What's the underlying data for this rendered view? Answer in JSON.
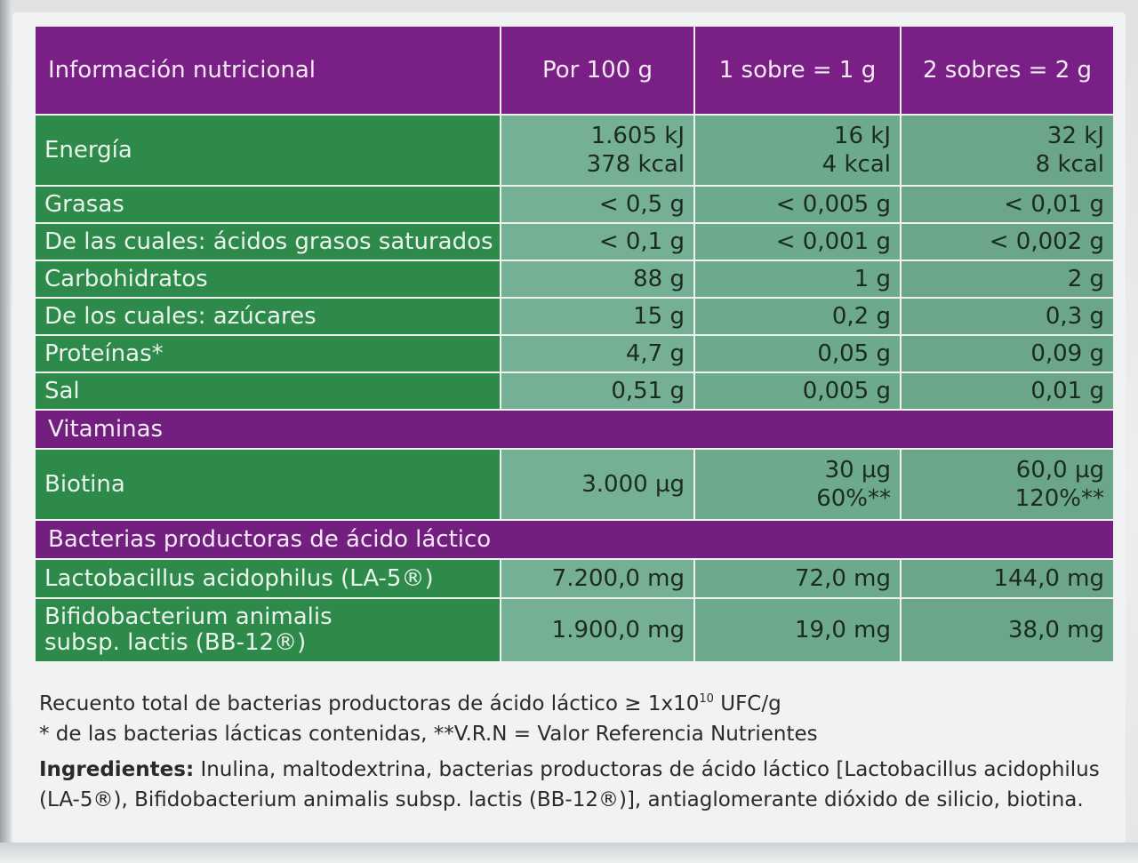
{
  "table": {
    "header": [
      "Información nutricional",
      "Por 100 g",
      "1 sobre = 1 g",
      "2 sobres = 2 g"
    ],
    "rows": [
      {
        "label": "Energía",
        "v1a": "1.605 kJ",
        "v1b": "378 kcal",
        "v2a": "16 kJ",
        "v2b": "4 kcal",
        "v3a": "32 kJ",
        "v3b": "8 kcal"
      },
      {
        "label": "Grasas",
        "v1": "< 0,5 g",
        "v2": "< 0,005 g",
        "v3": "< 0,01 g"
      },
      {
        "label": "De las cuales: ácidos grasos saturados",
        "v1": "< 0,1 g",
        "v2": "< 0,001 g",
        "v3": "< 0,002 g"
      },
      {
        "label": "Carbohidratos",
        "v1": "88 g",
        "v2": "1 g",
        "v3": "2 g"
      },
      {
        "label": "De los cuales: azúcares",
        "v1": "15 g",
        "v2": "0,2 g",
        "v3": "0,3 g"
      },
      {
        "label": "Proteínas*",
        "v1": "4,7 g",
        "v2": "0,05 g",
        "v3": "0,09 g"
      },
      {
        "label": "Sal",
        "v1": "0,51 g",
        "v2": "0,005 g",
        "v3": "0,01 g"
      }
    ],
    "vitamins_title": "Vitaminas",
    "biotina": {
      "label": "Biotina",
      "v1": "3.000 µg",
      "v2a": "30 µg",
      "v2b": "60%**",
      "v3a": "60,0 µg",
      "v3b": "120%**"
    },
    "bacteria_title": "Bacterias productoras de ácido láctico",
    "bacteria": [
      {
        "label": "Lactobacillus acidophilus (LA-5®)",
        "v1": "7.200,0 mg",
        "v2": "72,0 mg",
        "v3": "144,0 mg"
      },
      {
        "label_a": "Bifidobacterium animalis",
        "label_b": "subsp. lactis (BB-12®)",
        "v1": "1.900,0 mg",
        "v2": "19,0 mg",
        "v3": "38,0 mg"
      }
    ]
  },
  "footer": {
    "count_prefix": "Recuento total de bacterias productoras de ácido láctico ≥ 1x10",
    "count_exp": "10",
    "count_suffix": " UFC/g",
    "note": "* de las bacterias lácticas contenidas, **V.R.N = Valor Referencia Nutrientes",
    "ingredients_label": "Ingredientes:",
    "ingredients_text": " Inulina, maltodextrina, bacterias productoras de ácido láctico [Lactobacillus acidophilus (LA-5®), Bifidobacterium animalis subsp. lactis (BB-12®)], antiaglomerante dióxido de silicio, biotina."
  },
  "colors": {
    "header_purple": "#7a1f86",
    "label_green": "#2e8a4a",
    "value_green": "#6daa8c"
  }
}
